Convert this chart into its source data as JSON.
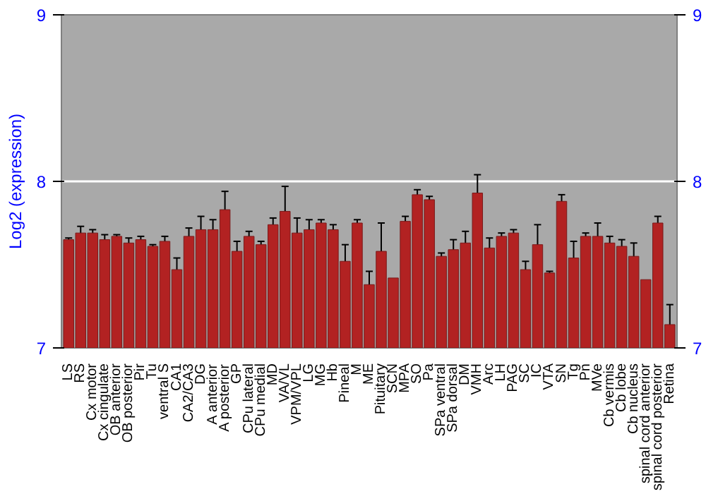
{
  "chart_data": {
    "type": "bar",
    "ylabel": "Log2 (expression)",
    "categories": [
      "LS",
      "RS",
      "Cx motor",
      "Cx cingulate",
      "OB anterior",
      "OB posterior",
      "Pir",
      "Tu",
      "ventral S",
      "CA1",
      "CA2/CA3",
      "DG",
      "A anterior",
      "A posterior",
      "GP",
      "CPu lateral",
      "CPu medial",
      "MD",
      "VA/VL",
      "VPM/VPL",
      "LG",
      "MG",
      "Hb",
      "Pineal",
      "M",
      "ME",
      "Pituitary",
      "SCN",
      "MPA",
      "SO",
      "Pa",
      "SPa ventral",
      "SPa dorsal",
      "DM",
      "VMH",
      "Arc",
      "LH",
      "PAG",
      "SC",
      "IC",
      "VTA",
      "SN",
      "Tg",
      "Pn",
      "MVe",
      "Cb vermis",
      "Cb lobe",
      "Cb nucleus",
      "spinal cord anterior",
      "spinal cord posterior",
      "Retina"
    ],
    "values": [
      7.65,
      7.69,
      7.69,
      7.65,
      7.67,
      7.63,
      7.65,
      7.61,
      7.64,
      7.47,
      7.67,
      7.71,
      7.71,
      7.83,
      7.58,
      7.67,
      7.62,
      7.74,
      7.82,
      7.69,
      7.71,
      7.75,
      7.71,
      7.52,
      7.75,
      7.38,
      7.58,
      7.42,
      7.76,
      7.92,
      7.89,
      7.55,
      7.59,
      7.63,
      7.93,
      7.6,
      7.67,
      7.69,
      7.47,
      7.62,
      7.45,
      7.88,
      7.54,
      7.67,
      7.67,
      7.63,
      7.61,
      7.55,
      7.41,
      7.75,
      7.14
    ],
    "errors": [
      0.01,
      0.04,
      0.02,
      0.03,
      0.01,
      0.03,
      0.02,
      0.01,
      0.03,
      0.07,
      0.05,
      0.08,
      0.06,
      0.11,
      0.06,
      0.03,
      0.02,
      0.04,
      0.15,
      0.09,
      0.06,
      0.02,
      0.03,
      0.1,
      0.02,
      0.08,
      0.17,
      null,
      0.03,
      0.03,
      0.02,
      0.02,
      0.06,
      0.07,
      0.11,
      0.06,
      0.02,
      0.02,
      0.05,
      0.12,
      0.01,
      0.04,
      0.1,
      0.02,
      0.08,
      0.04,
      0.04,
      0.08,
      null,
      0.04,
      0.12
    ],
    "color": "#b22222",
    "ylim": [
      7,
      9
    ],
    "yticks": [
      7,
      8,
      9
    ],
    "y2lim": [
      7,
      9
    ],
    "y2ticks": [
      7,
      8,
      9
    ],
    "grid": "y"
  }
}
